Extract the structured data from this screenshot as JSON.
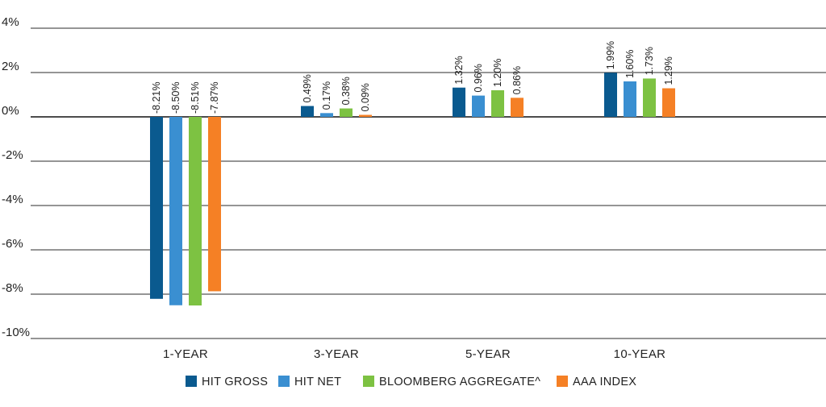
{
  "chart_data": {
    "type": "bar",
    "title": "",
    "xlabel": "",
    "ylabel": "",
    "categories": [
      "1-YEAR",
      "3-YEAR",
      "5-YEAR",
      "10-YEAR"
    ],
    "series": [
      {
        "name": "HIT GROSS",
        "color": "#0a5a8f",
        "values": [
          -8.21,
          0.49,
          1.32,
          1.99
        ],
        "labels": [
          "-8.21%",
          "0.49%",
          "1.32%",
          "1.99%"
        ]
      },
      {
        "name": "HIT NET",
        "color": "#3a8fd1",
        "values": [
          -8.5,
          0.17,
          0.96,
          1.6
        ],
        "labels": [
          "-8.50%",
          "0.17%",
          "0.96%",
          "1.60%"
        ]
      },
      {
        "name": "BLOOMBERG AGGREGATE^",
        "color": "#7dc242",
        "values": [
          -8.51,
          0.38,
          1.2,
          1.73
        ],
        "labels": [
          "-8.51%",
          "0.38%",
          "1.20%",
          "1.73%"
        ]
      },
      {
        "name": "AAA INDEX",
        "color": "#f58025",
        "values": [
          -7.87,
          0.09,
          0.86,
          1.29
        ],
        "labels": [
          "-7.87%",
          "0.09%",
          "0.86%",
          "1.29%"
        ]
      }
    ],
    "yticks": [
      4,
      2,
      0,
      -2,
      -4,
      -6,
      -8,
      -10
    ],
    "ytick_labels": [
      "4%",
      "2%",
      "0%",
      "-2%",
      "-4%",
      "-6%",
      "-8%",
      "-10%"
    ],
    "ylim": [
      -10,
      4
    ],
    "grid": true,
    "legend_position": "bottom"
  }
}
